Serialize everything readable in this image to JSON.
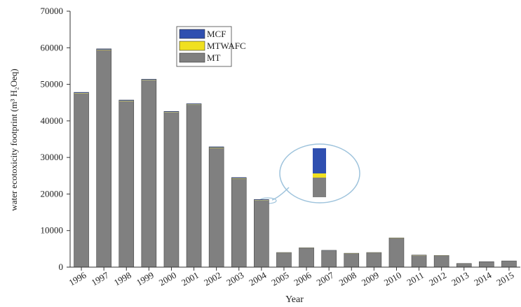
{
  "chart_data": {
    "type": "stacked_bar",
    "x_label": "Year",
    "y_label": "water ecotoxicity footprint (m³ H₂Oeq)",
    "categories": [
      "1996",
      "1997",
      "1998",
      "1999",
      "2000",
      "2001",
      "2002",
      "2003",
      "2004",
      "2005",
      "2006",
      "2007",
      "2008",
      "2009",
      "2010",
      "2011",
      "2012",
      "2013",
      "2014",
      "2015"
    ],
    "series": [
      {
        "name": "MT",
        "color": "#808080",
        "values": [
          47500,
          59400,
          45400,
          51100,
          42300,
          44400,
          32600,
          24200,
          18200,
          3900,
          5200,
          4500,
          3700,
          3900,
          7900,
          3200,
          3100,
          950,
          1450,
          1650
        ]
      },
      {
        "name": "MTWAFC",
        "color": "#f0e020",
        "values": [
          100,
          100,
          100,
          100,
          100,
          100,
          100,
          100,
          100,
          40,
          40,
          40,
          40,
          40,
          40,
          40,
          40,
          20,
          20,
          20
        ]
      },
      {
        "name": "MCF",
        "color": "#2f4fb0",
        "values": [
          200,
          200,
          200,
          200,
          200,
          200,
          200,
          200,
          200,
          60,
          60,
          60,
          60,
          60,
          60,
          60,
          60,
          30,
          30,
          30
        ]
      }
    ],
    "ylim": [
      0,
      70000
    ],
    "yticks": [
      0,
      10000,
      20000,
      30000,
      40000,
      50000,
      60000,
      70000
    ],
    "legend": "top-left"
  }
}
